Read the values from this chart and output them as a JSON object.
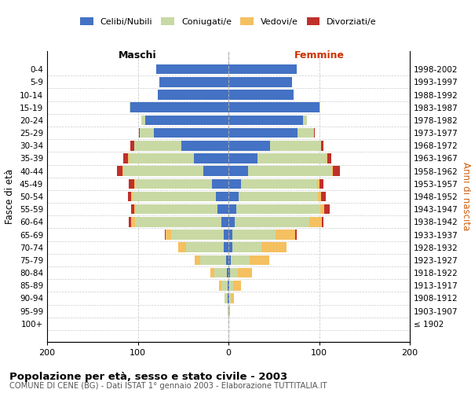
{
  "age_groups": [
    "100+",
    "95-99",
    "90-94",
    "85-89",
    "80-84",
    "75-79",
    "70-74",
    "65-69",
    "60-64",
    "55-59",
    "50-54",
    "45-49",
    "40-44",
    "35-39",
    "30-34",
    "25-29",
    "20-24",
    "15-19",
    "10-14",
    "5-9",
    "0-4"
  ],
  "birth_years": [
    "≤ 1902",
    "1903-1907",
    "1908-1912",
    "1913-1917",
    "1918-1922",
    "1923-1927",
    "1928-1932",
    "1933-1937",
    "1938-1942",
    "1943-1947",
    "1948-1952",
    "1953-1957",
    "1958-1962",
    "1963-1967",
    "1968-1972",
    "1973-1977",
    "1978-1982",
    "1983-1987",
    "1988-1992",
    "1993-1997",
    "1998-2002"
  ],
  "maschi": {
    "celibi": [
      0,
      0,
      1,
      1,
      2,
      3,
      5,
      5,
      8,
      12,
      14,
      18,
      28,
      38,
      52,
      82,
      92,
      108,
      78,
      76,
      80
    ],
    "coniugati": [
      0,
      1,
      3,
      7,
      14,
      28,
      42,
      58,
      95,
      90,
      92,
      85,
      88,
      72,
      52,
      16,
      4,
      1,
      0,
      0,
      0
    ],
    "vedovi": [
      0,
      0,
      0,
      2,
      4,
      6,
      8,
      6,
      4,
      2,
      1,
      1,
      1,
      1,
      0,
      0,
      0,
      0,
      0,
      0,
      0
    ],
    "divorziati": [
      0,
      0,
      0,
      0,
      0,
      0,
      0,
      1,
      3,
      3,
      4,
      6,
      6,
      5,
      4,
      1,
      0,
      0,
      0,
      0,
      0
    ]
  },
  "femmine": {
    "nubili": [
      0,
      0,
      1,
      1,
      2,
      3,
      4,
      4,
      7,
      9,
      11,
      14,
      22,
      32,
      46,
      76,
      82,
      100,
      72,
      70,
      75
    ],
    "coniugate": [
      0,
      1,
      2,
      4,
      8,
      20,
      32,
      48,
      82,
      92,
      88,
      84,
      92,
      76,
      56,
      18,
      5,
      1,
      0,
      0,
      0
    ],
    "vedove": [
      0,
      1,
      3,
      9,
      16,
      22,
      28,
      22,
      14,
      5,
      3,
      2,
      1,
      1,
      0,
      0,
      0,
      0,
      0,
      0,
      0
    ],
    "divorziate": [
      0,
      0,
      0,
      0,
      0,
      0,
      0,
      1,
      2,
      6,
      5,
      5,
      8,
      4,
      3,
      1,
      0,
      0,
      0,
      0,
      0
    ]
  },
  "colors": {
    "celibi": "#4472C4",
    "coniugati": "#C8D9A4",
    "vedovi": "#F5C060",
    "divorziati": "#C0302A"
  },
  "xlim": 200,
  "title": "Popolazione per età, sesso e stato civile - 2003",
  "subtitle": "COMUNE DI CENE (BG) - Dati ISTAT 1° gennaio 2003 - Elaborazione TUTTITALIA.IT",
  "ylabel_left": "Fasce di età",
  "ylabel_right": "Anni di nascita",
  "xlabel_left": "Maschi",
  "xlabel_right": "Femmine"
}
